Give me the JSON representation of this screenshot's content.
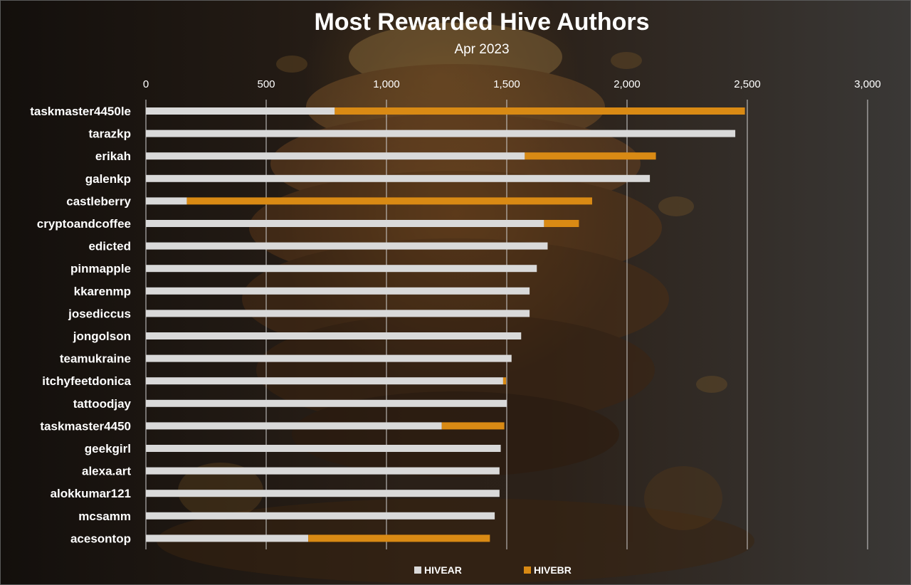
{
  "colors": {
    "hivear": "#d9d9d9",
    "hivebr": "#d98a14",
    "grid": "#d0d0d0",
    "text": "#ffffff"
  },
  "chart_data": {
    "type": "bar",
    "orientation": "horizontal",
    "stacked": true,
    "title": "Most Rewarded Hive Authors",
    "subtitle": "Apr 2023",
    "xlabel": "",
    "ylabel": "",
    "xlim": [
      0,
      3000
    ],
    "x_ticks": [
      0,
      500,
      1000,
      1500,
      2000,
      2500,
      3000
    ],
    "x_tick_labels": [
      "0",
      "500",
      "1,000",
      "1,500",
      "2,000",
      "2,500",
      "3,000"
    ],
    "grid": true,
    "legend_position": "bottom",
    "categories": [
      "taskmaster4450le",
      "tarazkp",
      "erikah",
      "galenkp",
      "castleberry",
      "cryptoandcoffee",
      "edicted",
      "pinmapple",
      "kkarenmp",
      "josediccus",
      "jongolson",
      "teamukraine",
      "itchyfeetdonica",
      "tattoodjay",
      "taskmaster4450",
      "geekgirl",
      "alexa.art",
      "alokkumar121",
      "mcsamm",
      "acesontop"
    ],
    "series": [
      {
        "name": "HIVEAR",
        "values": [
          785,
          2450,
          1575,
          2095,
          170,
          1655,
          1670,
          1625,
          1595,
          1595,
          1560,
          1520,
          1485,
          1500,
          1230,
          1475,
          1470,
          1470,
          1450,
          675
        ]
      },
      {
        "name": "HIVEBR",
        "values": [
          1705,
          0,
          545,
          0,
          1685,
          145,
          0,
          0,
          0,
          0,
          0,
          0,
          12,
          0,
          260,
          0,
          0,
          0,
          0,
          755
        ]
      }
    ]
  }
}
